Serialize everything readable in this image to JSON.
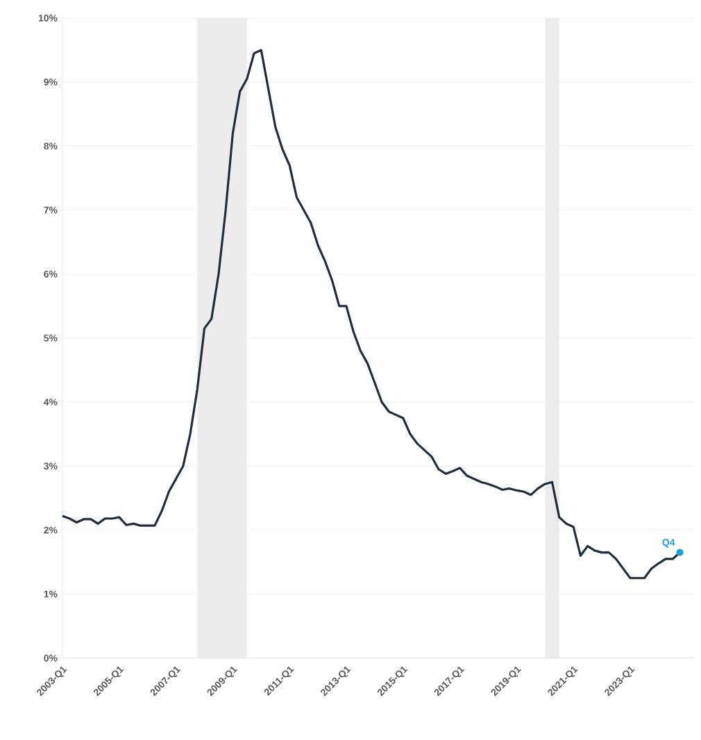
{
  "chart_data": {
    "type": "line",
    "grid": "y",
    "marker": "none",
    "line_style": "solid",
    "xlim": [
      "2003-01",
      "2025-04"
    ],
    "ylim": [
      0,
      10
    ],
    "xticks": [
      {
        "value": "2003-01",
        "label": "2003-Q1"
      },
      {
        "value": "2005-01",
        "label": "2005-Q1"
      },
      {
        "value": "2007-01",
        "label": "2007-Q1"
      },
      {
        "value": "2009-01",
        "label": "2009-Q1"
      },
      {
        "value": "2011-01",
        "label": "2011-Q1"
      },
      {
        "value": "2013-01",
        "label": "2013-Q1"
      },
      {
        "value": "2015-01",
        "label": "2015-Q1"
      },
      {
        "value": "2017-01",
        "label": "2017-Q1"
      },
      {
        "value": "2019-01",
        "label": "2019-Q1"
      },
      {
        "value": "2021-01",
        "label": "2021-Q1"
      },
      {
        "value": "2023-01",
        "label": "2023-Q1"
      }
    ],
    "yticks": [
      {
        "value": 0,
        "label": "0%"
      },
      {
        "value": 1,
        "label": "1%"
      },
      {
        "value": 2,
        "label": "2%"
      },
      {
        "value": 3,
        "label": "3%"
      },
      {
        "value": 4,
        "label": "4%"
      },
      {
        "value": 5,
        "label": "5%"
      },
      {
        "value": 6,
        "label": "6%"
      },
      {
        "value": 7,
        "label": "7%"
      },
      {
        "value": 8,
        "label": "8%"
      },
      {
        "value": 9,
        "label": "9%"
      },
      {
        "value": 10,
        "label": "10%"
      }
    ],
    "bands": [
      {
        "axis": "x",
        "from": "2007-10",
        "to": "2009-07",
        "color": "#ececec"
      },
      {
        "axis": "x",
        "from": "2020-01",
        "to": "2020-07",
        "color": "#ececec"
      }
    ],
    "annotations": [
      {
        "text": "Q4",
        "x": "2024-10",
        "y": 1.65
      }
    ],
    "series": [
      {
        "color": "#1f2d3d",
        "x": [
          "2003-01",
          "2003-04",
          "2003-07",
          "2003-10",
          "2004-01",
          "2004-04",
          "2004-07",
          "2004-10",
          "2005-01",
          "2005-04",
          "2005-07",
          "2005-10",
          "2006-01",
          "2006-04",
          "2006-07",
          "2006-10",
          "2007-01",
          "2007-04",
          "2007-07",
          "2007-10",
          "2008-01",
          "2008-04",
          "2008-07",
          "2008-10",
          "2009-01",
          "2009-04",
          "2009-07",
          "2009-10",
          "2010-01",
          "2010-04",
          "2010-07",
          "2010-10",
          "2011-01",
          "2011-04",
          "2011-07",
          "2011-10",
          "2012-01",
          "2012-04",
          "2012-07",
          "2012-10",
          "2013-01",
          "2013-04",
          "2013-07",
          "2013-10",
          "2014-01",
          "2014-04",
          "2014-07",
          "2014-10",
          "2015-01",
          "2015-04",
          "2015-07",
          "2015-10",
          "2016-01",
          "2016-04",
          "2016-07",
          "2016-10",
          "2017-01",
          "2017-04",
          "2017-07",
          "2017-10",
          "2018-01",
          "2018-04",
          "2018-07",
          "2018-10",
          "2019-01",
          "2019-04",
          "2019-07",
          "2019-10",
          "2020-01",
          "2020-04",
          "2020-07",
          "2020-10",
          "2021-01",
          "2021-04",
          "2021-07",
          "2021-10",
          "2022-01",
          "2022-04",
          "2022-07",
          "2022-10",
          "2023-01",
          "2023-04",
          "2023-07",
          "2023-10",
          "2024-01",
          "2024-04",
          "2024-07",
          "2024-10"
        ],
        "values": [
          2.22,
          2.18,
          2.12,
          2.17,
          2.17,
          2.1,
          2.18,
          2.18,
          2.2,
          2.08,
          2.1,
          2.07,
          2.07,
          2.07,
          2.3,
          2.6,
          2.8,
          3.0,
          3.5,
          4.2,
          5.15,
          5.3,
          6.0,
          7.0,
          8.2,
          8.85,
          9.05,
          9.45,
          9.5,
          8.9,
          8.3,
          7.95,
          7.7,
          7.2,
          7.0,
          6.8,
          6.45,
          6.2,
          5.9,
          5.5,
          5.5,
          5.1,
          4.8,
          4.6,
          4.3,
          4.0,
          3.85,
          3.8,
          3.75,
          3.5,
          3.35,
          3.25,
          3.15,
          2.95,
          2.88,
          2.92,
          2.97,
          2.85,
          2.8,
          2.75,
          2.72,
          2.68,
          2.63,
          2.65,
          2.62,
          2.6,
          2.55,
          2.65,
          2.72,
          2.75,
          2.2,
          2.1,
          2.05,
          1.6,
          1.75,
          1.68,
          1.65,
          1.65,
          1.55,
          1.4,
          1.25,
          1.25,
          1.25,
          1.4,
          1.48,
          1.55,
          1.55,
          1.65
        ]
      }
    ]
  }
}
